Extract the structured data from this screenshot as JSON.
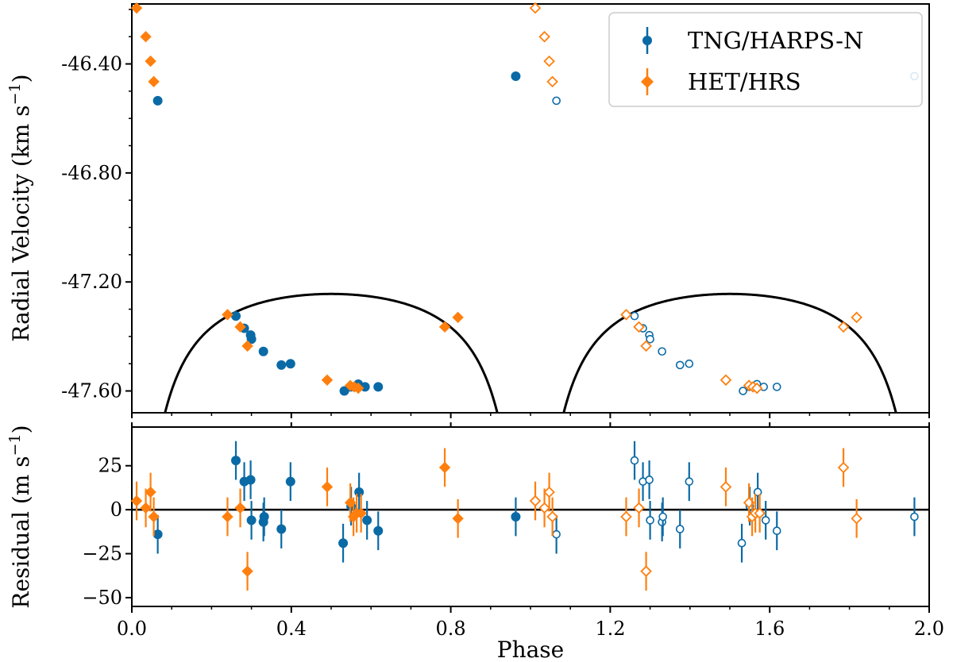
{
  "colors": {
    "tng": "#0a6aa6",
    "het": "#ff7f0e",
    "model": "#000000"
  },
  "chart_data": [
    {
      "type": "scatter",
      "panel": "top",
      "xlim": [
        0.0,
        2.0
      ],
      "ylim": [
        -47.68,
        -46.18
      ],
      "ylabel": "Radial Velocity (km s",
      "ylabel_sup": "−1",
      "ylabel_close": ")",
      "yticks": [
        -46.4,
        -46.8,
        -47.2,
        -47.6
      ],
      "ytick_labels": [
        "-46.40",
        "-46.80",
        "-47.20",
        "-47.60"
      ],
      "legend": {
        "position": "top-right",
        "entries": [
          "TNG/HARPS-N",
          "HET/HRS"
        ]
      },
      "model": {
        "K": 0.69,
        "e": 0.68,
        "omega_deg": 180,
        "gamma": -47.4648,
        "phase_of_max": 0.0
      },
      "series": [
        {
          "name": "TNG/HARPS-N",
          "marker": "circle",
          "points": [
            [
              0.065,
              -46.535
            ],
            [
              0.261,
              -47.325
            ],
            [
              0.282,
              -47.37
            ],
            [
              0.298,
              -47.395
            ],
            [
              0.3,
              -47.41
            ],
            [
              0.33,
              -47.455
            ],
            [
              0.375,
              -47.505
            ],
            [
              0.398,
              -47.5
            ],
            [
              0.533,
              -47.6
            ],
            [
              0.548,
              -47.585
            ],
            [
              0.568,
              -47.575
            ],
            [
              0.585,
              -47.585
            ],
            [
              0.618,
              -47.585
            ],
            [
              0.963,
              -46.445
            ]
          ]
        },
        {
          "name": "HET/HRS",
          "marker": "diamond",
          "points": [
            [
              0.012,
              -46.195
            ],
            [
              0.035,
              -46.3
            ],
            [
              0.047,
              -46.39
            ],
            [
              0.055,
              -46.465
            ],
            [
              0.24,
              -47.32
            ],
            [
              0.272,
              -47.365
            ],
            [
              0.29,
              -47.435
            ],
            [
              0.49,
              -47.56
            ],
            [
              0.548,
              -47.58
            ],
            [
              0.558,
              -47.585
            ],
            [
              0.568,
              -47.59
            ],
            [
              0.785,
              -47.365
            ],
            [
              0.818,
              -47.33
            ]
          ]
        }
      ]
    },
    {
      "type": "scatter",
      "panel": "bottom",
      "xlim": [
        0.0,
        2.0
      ],
      "ylim": [
        -55,
        47
      ],
      "xlabel": "Phase",
      "ylabel": "Residual (m s",
      "ylabel_sup": "−1",
      "ylabel_close": ")",
      "xticks": [
        0.0,
        0.4,
        0.8,
        1.2,
        1.6,
        2.0
      ],
      "xtick_labels": [
        "0.0",
        "0.4",
        "0.8",
        "1.2",
        "1.6",
        "2.0"
      ],
      "yticks": [
        25,
        0,
        -25,
        -50
      ],
      "ytick_labels": [
        "25",
        "0",
        "−25",
        "−50"
      ],
      "zero_line": 0,
      "series": [
        {
          "name": "TNG/HARPS-N",
          "marker": "circle",
          "points": [
            [
              0.065,
              -14
            ],
            [
              0.261,
              28
            ],
            [
              0.282,
              16
            ],
            [
              0.298,
              17
            ],
            [
              0.3,
              -6
            ],
            [
              0.33,
              -7
            ],
            [
              0.332,
              -4
            ],
            [
              0.375,
              -11
            ],
            [
              0.398,
              16
            ],
            [
              0.53,
              -19
            ],
            [
              0.55,
              2
            ],
            [
              0.57,
              10
            ],
            [
              0.59,
              -6
            ],
            [
              0.618,
              -12
            ],
            [
              0.963,
              -4
            ]
          ]
        },
        {
          "name": "HET/HRS",
          "marker": "diamond",
          "points": [
            [
              0.012,
              5
            ],
            [
              0.035,
              1
            ],
            [
              0.047,
              10
            ],
            [
              0.055,
              -4
            ],
            [
              0.24,
              -4
            ],
            [
              0.272,
              1
            ],
            [
              0.29,
              -35
            ],
            [
              0.49,
              13
            ],
            [
              0.548,
              4
            ],
            [
              0.556,
              -4
            ],
            [
              0.564,
              -2
            ],
            [
              0.575,
              -2
            ],
            [
              0.785,
              24
            ],
            [
              0.818,
              -5
            ]
          ]
        }
      ]
    }
  ]
}
